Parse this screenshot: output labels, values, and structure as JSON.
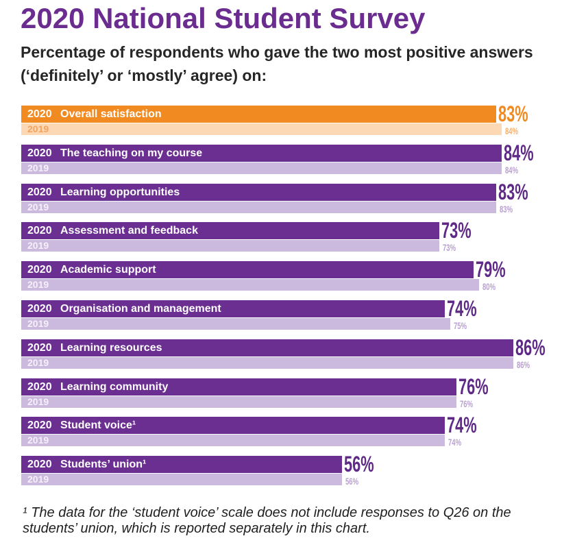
{
  "colors": {
    "title": "#6a2c8f",
    "subtitle": "#262626",
    "footnote": "#1f1f1f",
    "background": "#ffffff"
  },
  "chart_data": {
    "type": "bar",
    "orientation": "horizontal",
    "title": "2020 National Student Survey",
    "subtitle": "Percentage of respondents who gave the two most positive answers (‘definitely’ or ‘mostly’ agree) on:",
    "categories": [
      "Overall satisfaction",
      "The teaching on my course",
      "Learning opportunities",
      "Assessment and feedback",
      "Academic support",
      "Organisation and management",
      "Learning resources",
      "Learning community",
      "Student voice¹",
      "Students’ union¹"
    ],
    "unit": "%",
    "grid": false,
    "series": [
      {
        "name": "2020",
        "values": [
          83,
          84,
          83,
          73,
          79,
          74,
          86,
          76,
          74,
          56
        ],
        "bar_colors": [
          "#f28a22",
          "#6b2f91",
          "#6b2f91",
          "#6b2f91",
          "#6b2f91",
          "#6b2f91",
          "#6b2f91",
          "#6b2f91",
          "#6b2f91",
          "#6b2f91"
        ],
        "label_colors": [
          "#ffffff",
          "#ffffff",
          "#ffffff",
          "#ffffff",
          "#ffffff",
          "#ffffff",
          "#ffffff",
          "#ffffff",
          "#ffffff",
          "#ffffff"
        ],
        "value_label_colors": [
          "#f28a22",
          "#5e2a86",
          "#5e2a86",
          "#5e2a86",
          "#5e2a86",
          "#5e2a86",
          "#5e2a86",
          "#5e2a86",
          "#5e2a86",
          "#5e2a86"
        ]
      },
      {
        "name": "2019",
        "values": [
          84,
          84,
          83,
          73,
          80,
          75,
          86,
          76,
          74,
          56
        ],
        "bar_colors": [
          "#fdd8b5",
          "#ccb9de",
          "#ccb9de",
          "#ccb9de",
          "#ccb9de",
          "#ccb9de",
          "#ccb9de",
          "#ccb9de",
          "#ccb9de",
          "#ccb9de"
        ],
        "label_colors": [
          "#f4a45c",
          "#f5f0fa",
          "#f5f0fa",
          "#f5f0fa",
          "#f5f0fa",
          "#f5f0fa",
          "#f5f0fa",
          "#f5f0fa",
          "#f5f0fa",
          "#f5f0fa"
        ],
        "value_label_colors": [
          "#f7b06e",
          "#b9a1d1",
          "#b9a1d1",
          "#b9a1d1",
          "#b9a1d1",
          "#b9a1d1",
          "#b9a1d1",
          "#b9a1d1",
          "#b9a1d1",
          "#b9a1d1"
        ]
      }
    ],
    "footnote": "¹ The data for the ‘student voice’ scale does not include responses to Q26 on the students’ union, which is reported separately in this chart."
  }
}
